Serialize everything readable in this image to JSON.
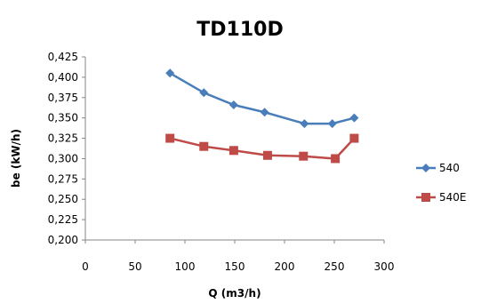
{
  "chart_data": {
    "type": "line",
    "title": "TD110D",
    "xlabel": "Q (m3/h)",
    "ylabel": "be (kW/h)",
    "xlim": [
      0,
      300
    ],
    "ylim": [
      0.2,
      0.425
    ],
    "x_ticks": [
      {
        "value": 0,
        "label": "0"
      },
      {
        "value": 50,
        "label": "50"
      },
      {
        "value": 100,
        "label": "100"
      },
      {
        "value": 150,
        "label": "150"
      },
      {
        "value": 200,
        "label": "200"
      },
      {
        "value": 250,
        "label": "250"
      },
      {
        "value": 300,
        "label": "300"
      }
    ],
    "y_ticks": [
      {
        "value": 0.2,
        "label": "0,200"
      },
      {
        "value": 0.225,
        "label": "0,225"
      },
      {
        "value": 0.25,
        "label": "0,250"
      },
      {
        "value": 0.275,
        "label": "0,275"
      },
      {
        "value": 0.3,
        "label": "0,300"
      },
      {
        "value": 0.325,
        "label": "0,325"
      },
      {
        "value": 0.35,
        "label": "0,350"
      },
      {
        "value": 0.375,
        "label": "0,375"
      },
      {
        "value": 0.4,
        "label": "0,400"
      },
      {
        "value": 0.425,
        "label": "0,425"
      }
    ],
    "grid": false,
    "legend_position": "right",
    "series": [
      {
        "name": "540",
        "color": "#4a7ebb",
        "marker": "diamond",
        "x": [
          85,
          119,
          149,
          180,
          220,
          248,
          270
        ],
        "y": [
          0.405,
          0.381,
          0.366,
          0.357,
          0.343,
          0.343,
          0.35
        ]
      },
      {
        "name": "540E",
        "color": "#be4b48",
        "marker": "square",
        "x": [
          85,
          119,
          149,
          183,
          219,
          251,
          270
        ],
        "y": [
          0.325,
          0.315,
          0.31,
          0.304,
          0.303,
          0.3,
          0.325
        ]
      }
    ]
  }
}
